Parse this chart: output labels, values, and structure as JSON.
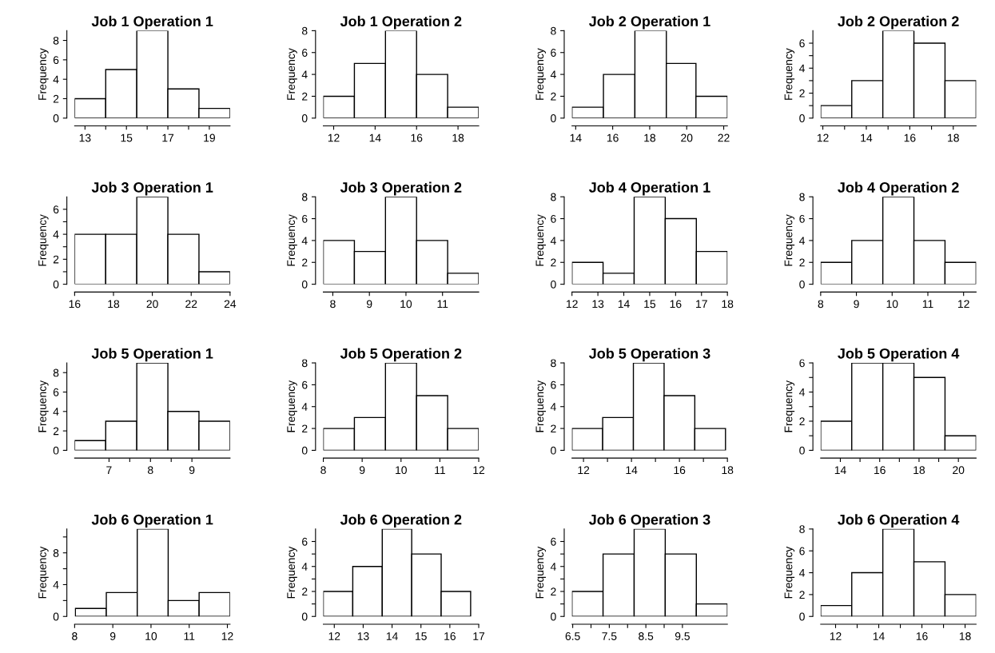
{
  "chart_data": [
    {
      "type": "histogram",
      "title": "Job 1 Operation 1",
      "ylabel": "Frequency",
      "color": "#ffffff",
      "bins": [
        12.5,
        14,
        15.5,
        17,
        18.5,
        20
      ],
      "values": [
        2,
        5,
        9,
        3,
        1
      ],
      "xlim": [
        12.5,
        20
      ],
      "xticks": [
        13,
        {
          "value": 14,
          "label": null
        },
        15,
        {
          "value": 16,
          "label": null
        },
        17,
        {
          "value": 18,
          "label": null
        },
        19
      ],
      "ylim": [
        0,
        9
      ],
      "yticks": [
        0,
        2,
        4,
        6,
        8
      ],
      "grid": false
    },
    {
      "type": "histogram",
      "title": "Job 1 Operation 2",
      "ylabel": "Frequency",
      "color": "#ffffff",
      "bins": [
        11.5,
        13,
        14.5,
        16,
        17.5,
        19
      ],
      "values": [
        2,
        5,
        8,
        4,
        1
      ],
      "xlim": [
        11.5,
        19
      ],
      "xticks": [
        12,
        14,
        16,
        18
      ],
      "ylim": [
        0,
        8
      ],
      "yticks": [
        0,
        2,
        4,
        6,
        8
      ],
      "grid": false
    },
    {
      "type": "histogram",
      "title": "Job 2 Operation 1",
      "ylabel": "Frequency",
      "color": "#ffffff",
      "bins": [
        13.8,
        15.5,
        17.2,
        18.9,
        20.5,
        22.2
      ],
      "values": [
        1,
        4,
        8,
        5,
        2
      ],
      "xlim": [
        13.8,
        22.2
      ],
      "xticks": [
        14,
        16,
        18,
        20,
        22
      ],
      "ylim": [
        0,
        8
      ],
      "yticks": [
        0,
        2,
        4,
        6,
        8
      ],
      "grid": false
    },
    {
      "type": "histogram",
      "title": "Job 2 Operation 2",
      "ylabel": "Frequency",
      "color": "#ffffff",
      "bins": [
        11.9,
        13.33,
        14.76,
        16.19,
        17.62,
        19.05
      ],
      "values": [
        1,
        3,
        7,
        6,
        3
      ],
      "xlim": [
        11.9,
        19.05
      ],
      "xticks": [
        12,
        {
          "value": 13,
          "label": null
        },
        14,
        {
          "value": 15,
          "label": null
        },
        16,
        {
          "value": 17,
          "label": null
        },
        18
      ],
      "ylim": [
        0,
        7
      ],
      "yticks": [
        0,
        {
          "value": 1,
          "label": null
        },
        2,
        {
          "value": 3,
          "label": null
        },
        4,
        {
          "value": 5,
          "label": null
        },
        6
      ],
      "grid": false
    },
    {
      "type": "histogram",
      "title": "Job 3 Operation 1",
      "ylabel": "Frequency",
      "color": "#ffffff",
      "bins": [
        16,
        17.6,
        19.2,
        20.8,
        22.4,
        24
      ],
      "values": [
        4,
        4,
        7,
        4,
        1
      ],
      "xlim": [
        16,
        24
      ],
      "xticks": [
        16,
        18,
        20,
        22,
        24
      ],
      "ylim": [
        0,
        7
      ],
      "yticks": [
        0,
        {
          "value": 1,
          "label": null
        },
        2,
        {
          "value": 3,
          "label": null
        },
        4,
        {
          "value": 5,
          "label": null
        },
        6
      ],
      "grid": false
    },
    {
      "type": "histogram",
      "title": "Job 3 Operation 2",
      "ylabel": "Frequency",
      "color": "#ffffff",
      "bins": [
        7.74,
        8.59,
        9.44,
        10.29,
        11.14,
        11.99
      ],
      "values": [
        4,
        3,
        8,
        4,
        1
      ],
      "xlim": [
        7.74,
        11.99
      ],
      "xticks": [
        8,
        9,
        10,
        11
      ],
      "ylim": [
        0,
        8
      ],
      "yticks": [
        0,
        2,
        4,
        6,
        8
      ],
      "grid": false
    },
    {
      "type": "histogram",
      "title": "Job 4 Operation 1",
      "ylabel": "Frequency",
      "color": "#ffffff",
      "bins": [
        12,
        13.2,
        14.4,
        15.6,
        16.8,
        18
      ],
      "values": [
        2,
        1,
        8,
        6,
        3
      ],
      "xlim": [
        12,
        18
      ],
      "xticks": [
        12,
        13,
        14,
        15,
        16,
        17,
        18
      ],
      "ylim": [
        0,
        8
      ],
      "yticks": [
        0,
        2,
        4,
        6,
        8
      ],
      "grid": false
    },
    {
      "type": "histogram",
      "title": "Job 4 Operation 2",
      "ylabel": "Frequency",
      "color": "#ffffff",
      "bins": [
        8,
        8.87,
        9.74,
        10.61,
        11.48,
        12.35
      ],
      "values": [
        2,
        4,
        8,
        4,
        2
      ],
      "xlim": [
        8,
        12.35
      ],
      "xticks": [
        8,
        9,
        10,
        11,
        12
      ],
      "ylim": [
        0,
        8
      ],
      "yticks": [
        0,
        2,
        4,
        6,
        8
      ],
      "grid": false
    },
    {
      "type": "histogram",
      "title": "Job 5 Operation 1",
      "ylabel": "Frequency",
      "color": "#ffffff",
      "bins": [
        6.17,
        6.92,
        7.67,
        8.42,
        9.17,
        9.92
      ],
      "values": [
        1,
        3,
        9,
        4,
        3
      ],
      "xlim": [
        6.17,
        9.92
      ],
      "xticks": [
        7,
        {
          "value": 7.5,
          "label": null
        },
        8,
        {
          "value": 8.5,
          "label": null
        },
        9
      ],
      "ylim": [
        0,
        9
      ],
      "yticks": [
        0,
        2,
        4,
        6,
        8
      ],
      "grid": false
    },
    {
      "type": "histogram",
      "title": "Job 5 Operation 2",
      "ylabel": "Frequency",
      "color": "#ffffff",
      "bins": [
        8,
        8.8,
        9.6,
        10.4,
        11.2,
        12
      ],
      "values": [
        2,
        3,
        8,
        5,
        2
      ],
      "xlim": [
        8,
        12
      ],
      "xticks": [
        8,
        9,
        10,
        11,
        12
      ],
      "ylim": [
        0,
        8
      ],
      "yticks": [
        0,
        2,
        4,
        6,
        8
      ],
      "grid": false
    },
    {
      "type": "histogram",
      "title": "Job 5 Operation 3",
      "ylabel": "Frequency",
      "color": "#ffffff",
      "bins": [
        11.52,
        12.8,
        14.08,
        15.36,
        16.64,
        17.92
      ],
      "values": [
        2,
        3,
        8,
        5,
        2
      ],
      "xlim": [
        11.52,
        18
      ],
      "xticks": [
        12,
        {
          "value": 13,
          "label": null
        },
        14,
        {
          "value": 15,
          "label": null
        },
        16,
        {
          "value": 17,
          "label": null
        },
        18
      ],
      "ylim": [
        0,
        8
      ],
      "yticks": [
        0,
        2,
        4,
        6,
        8
      ],
      "grid": false
    },
    {
      "type": "histogram",
      "title": "Job 5 Operation 4",
      "ylabel": "Frequency",
      "color": "#ffffff",
      "bins": [
        13,
        14.58,
        16.16,
        17.74,
        19.32,
        20.9
      ],
      "values": [
        2,
        6,
        6,
        5,
        1
      ],
      "xlim": [
        13,
        20.9
      ],
      "xticks": [
        14,
        {
          "value": 15,
          "label": null
        },
        16,
        {
          "value": 17,
          "label": null
        },
        18,
        {
          "value": 19,
          "label": null
        },
        20
      ],
      "ylim": [
        0,
        6
      ],
      "yticks": [
        0,
        {
          "value": 1,
          "label": null
        },
        2,
        {
          "value": 3,
          "label": null
        },
        4,
        {
          "value": 5,
          "label": null
        },
        6
      ],
      "grid": false
    },
    {
      "type": "histogram",
      "title": "Job 6 Operation 1",
      "ylabel": "Frequency",
      "color": "#ffffff",
      "bins": [
        8.02,
        8.83,
        9.64,
        10.45,
        11.26,
        12.07
      ],
      "values": [
        1,
        3,
        11,
        2,
        3
      ],
      "xlim": [
        8,
        12.07
      ],
      "xticks": [
        8,
        9,
        10,
        11,
        12
      ],
      "ylim": [
        0,
        11
      ],
      "yticks": [
        0,
        {
          "value": 2,
          "label": null
        },
        4,
        {
          "value": 6,
          "label": null
        },
        8,
        {
          "value": 10,
          "label": null
        }
      ],
      "grid": false
    },
    {
      "type": "histogram",
      "title": "Job 6 Operation 2",
      "ylabel": "Frequency",
      "color": "#ffffff",
      "bins": [
        11.62,
        12.64,
        13.66,
        14.68,
        15.7,
        16.72
      ],
      "values": [
        2,
        4,
        7,
        5,
        2
      ],
      "xlim": [
        11.62,
        17
      ],
      "xticks": [
        12,
        13,
        14,
        15,
        16,
        17
      ],
      "ylim": [
        0,
        7
      ],
      "yticks": [
        0,
        {
          "value": 1,
          "label": null
        },
        2,
        {
          "value": 3,
          "label": null
        },
        4,
        {
          "value": 5,
          "label": null
        },
        6
      ],
      "grid": false
    },
    {
      "type": "histogram",
      "title": "Job 6 Operation 3",
      "ylabel": "Frequency",
      "color": "#ffffff",
      "bins": [
        6.48,
        7.33,
        8.18,
        9.03,
        9.88,
        10.73
      ],
      "values": [
        2,
        5,
        7,
        5,
        1
      ],
      "xlim": [
        6.48,
        10.73
      ],
      "xticks": [
        6.5,
        {
          "value": 7,
          "label": null
        },
        7.5,
        {
          "value": 8,
          "label": null
        },
        8.5,
        {
          "value": 9,
          "label": null
        },
        9.5
      ],
      "ylim": [
        0,
        7
      ],
      "yticks": [
        0,
        {
          "value": 1,
          "label": null
        },
        2,
        {
          "value": 3,
          "label": null
        },
        4,
        {
          "value": 5,
          "label": null
        },
        6
      ],
      "grid": false
    },
    {
      "type": "histogram",
      "title": "Job 6 Operation 4",
      "ylabel": "Frequency",
      "color": "#ffffff",
      "bins": [
        11.31,
        12.75,
        14.19,
        15.63,
        17.07,
        18.51
      ],
      "values": [
        1,
        4,
        8,
        5,
        2
      ],
      "xlim": [
        11.31,
        18.51
      ],
      "xticks": [
        12,
        {
          "value": 13,
          "label": null
        },
        14,
        {
          "value": 15,
          "label": null
        },
        16,
        {
          "value": 17,
          "label": null
        },
        18
      ],
      "ylim": [
        0,
        8
      ],
      "yticks": [
        0,
        2,
        4,
        6,
        8
      ],
      "grid": false
    }
  ]
}
